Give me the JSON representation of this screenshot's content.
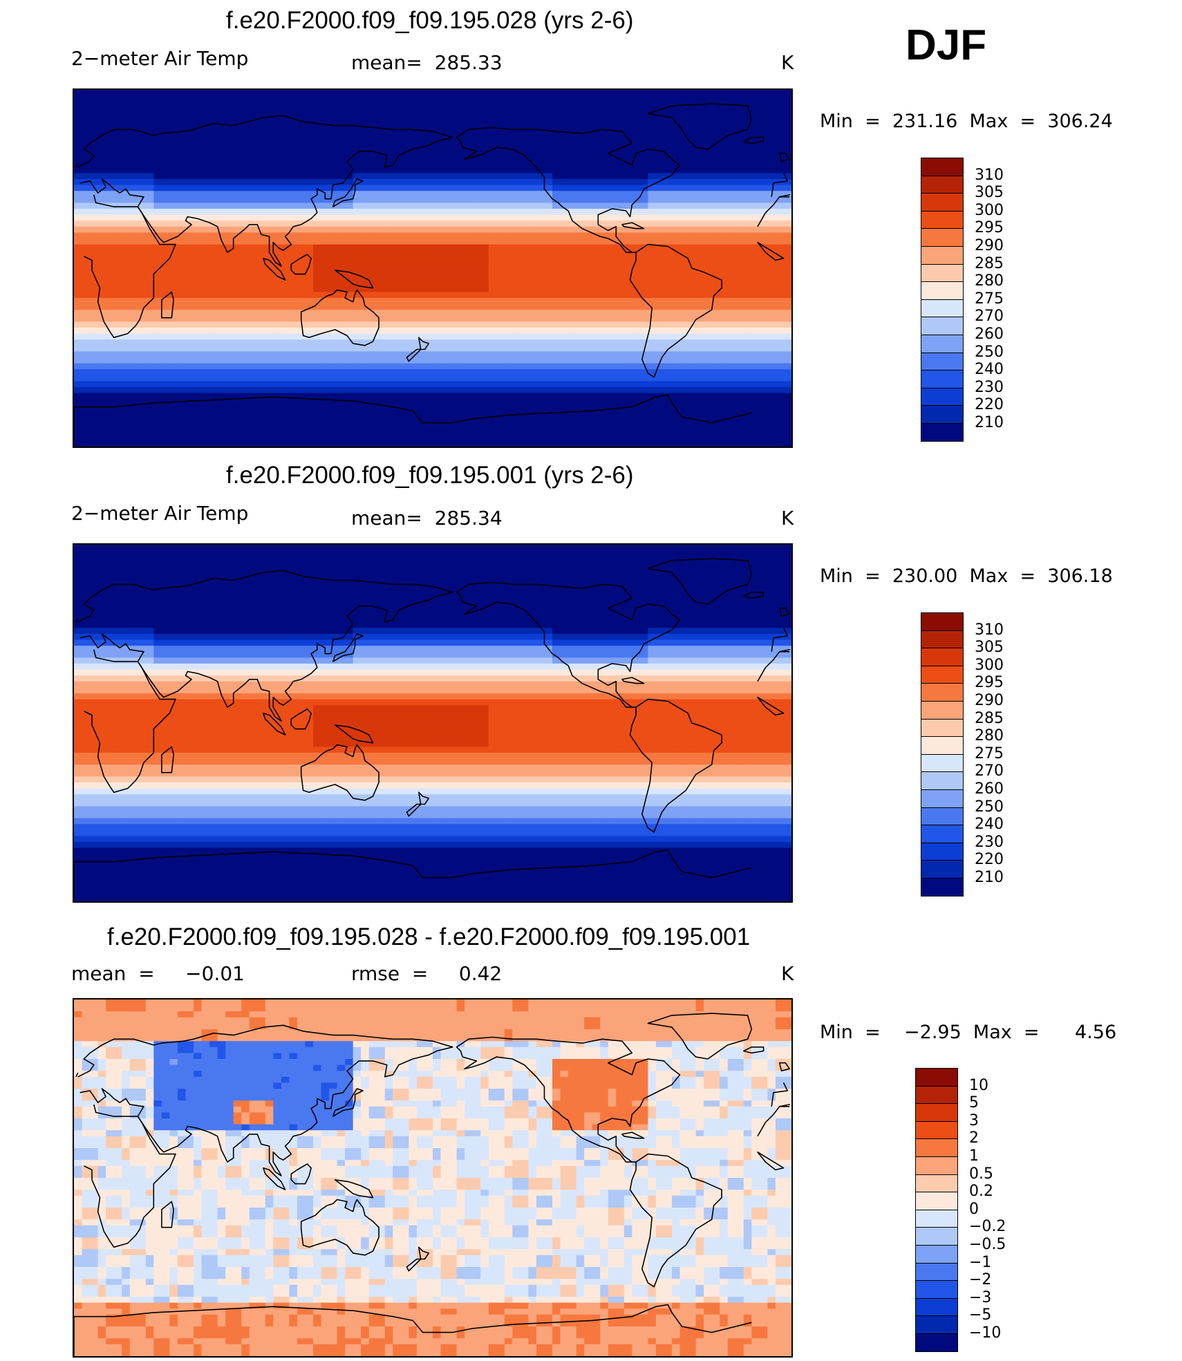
{
  "season": "DJF",
  "colors": {
    "temp_scale": [
      "#000a7e",
      "#0029b0",
      "#0c3ed6",
      "#2256e8",
      "#4a78f0",
      "#7ea2f5",
      "#aec8f8",
      "#d8e6fb",
      "#fde9dc",
      "#fccbae",
      "#fba47a",
      "#f7783f",
      "#ed4e16",
      "#d83809",
      "#b52306",
      "#8a0c03"
    ],
    "diff_scale": [
      "#000a7e",
      "#0029b0",
      "#0c3ed6",
      "#2256e8",
      "#4a78f0",
      "#7ea2f5",
      "#aec8f8",
      "#d8e6fb",
      "#fde9dc",
      "#fccbae",
      "#fba47a",
      "#f7783f",
      "#ed4e16",
      "#d83809",
      "#b52306",
      "#8a0c03"
    ]
  },
  "panels": [
    {
      "title": "f.e20.F2000.f09_f09.195.028 (yrs 2-6)",
      "left_label": "2−meter Air Temp",
      "center_label": "mean=  285.33",
      "units": "K",
      "minmax": "Min  =  231.16  Max  =  306.24",
      "field": "temp",
      "variant": 0,
      "labelbar": [
        "310",
        "305",
        "300",
        "295",
        "290",
        "285",
        "280",
        "275",
        "270",
        "260",
        "250",
        "240",
        "230",
        "220",
        "210"
      ]
    },
    {
      "title": "f.e20.F2000.f09_f09.195.001 (yrs 2-6)",
      "left_label": "2−meter Air Temp",
      "center_label": "mean=  285.34",
      "units": "K",
      "minmax": "Min  =  230.00  Max  =  306.18",
      "field": "temp",
      "variant": 1,
      "labelbar": [
        "310",
        "305",
        "300",
        "295",
        "290",
        "285",
        "280",
        "275",
        "270",
        "260",
        "250",
        "240",
        "230",
        "220",
        "210"
      ]
    },
    {
      "title": "f.e20.F2000.f09_f09.195.028 - f.e20.F2000.f09_f09.195.001",
      "left_label": "mean  =     −0.01",
      "center_label": "rmse  =     0.42",
      "units": "K",
      "minmax": "Min  =    −2.95  Max  =      4.56",
      "field": "diff",
      "variant": 2,
      "labelbar": [
        "10",
        "5",
        "3",
        "2",
        "1",
        "0.5",
        "0.2",
        "0",
        "−0.2",
        "−0.5",
        "−1",
        "−2",
        "−3",
        "−5",
        "−10"
      ]
    }
  ]
}
